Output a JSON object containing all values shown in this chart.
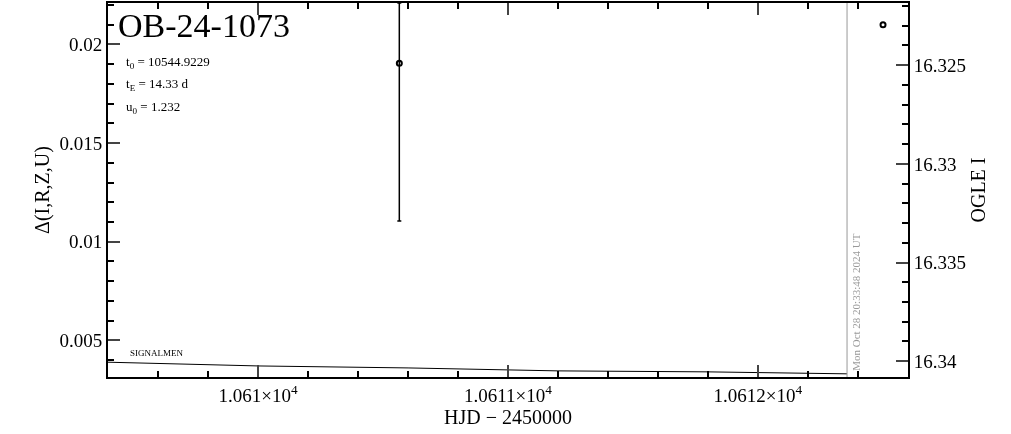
{
  "chart_data": {
    "type": "scatter",
    "title": "OB-24-1073",
    "xlabel": "HJD − 2450000",
    "ylabel": "Δ(I,R,Z,U)",
    "y2label": "OGLE I",
    "annotations": [
      "t$_{0}$ = 10544.9229",
      "t$_{E}$ = 14.33 d",
      "u$_{0}$ = 1.232",
      "SIGNALMEN",
      "Mon Oct 28 20:33:48 2024 UT"
    ],
    "series": [
      {
        "type": "line",
        "color": "#000000",
        "marker": "none",
        "x": [
          10609.399,
          10610.0,
          10610.6,
          10611.2,
          10611.8,
          10612.357
        ],
        "values": [
          0.00389,
          0.0037,
          0.0036,
          0.00345,
          0.0034,
          0.0033
        ]
      },
      {
        "color": "#000000",
        "marker": "circle",
        "x": [
          10610.565
        ],
        "values": [
          0.01905
        ],
        "errors": [
          [
            0.01105,
            0.0221
          ]
        ]
      },
      {
        "color": "#000000",
        "marker": "circle",
        "axis": "y2",
        "x": [
          10612.501
        ],
        "values": [
          16.32295
        ]
      }
    ],
    "ref_lines": [
      {
        "axis": "x",
        "value": 10612.357,
        "color": "#999999"
      }
    ],
    "xlim": [
      10609.399,
      10612.601
    ],
    "xticks": [
      {
        "value": 10610,
        "label": "1.061×10$^{4}$"
      },
      {
        "value": 10611,
        "label": "1.0611×10$^{4}$"
      },
      {
        "value": 10612,
        "label": "1.0612×10$^{4}$"
      }
    ],
    "ylim": [
      0.00314,
      0.0221
    ],
    "yticks": [
      0.005,
      0.01,
      0.015,
      0.02
    ],
    "y2lim": [
      16.3408,
      16.32185
    ],
    "y2ticks": [
      16.325,
      16.33,
      16.335,
      16.34
    ]
  }
}
